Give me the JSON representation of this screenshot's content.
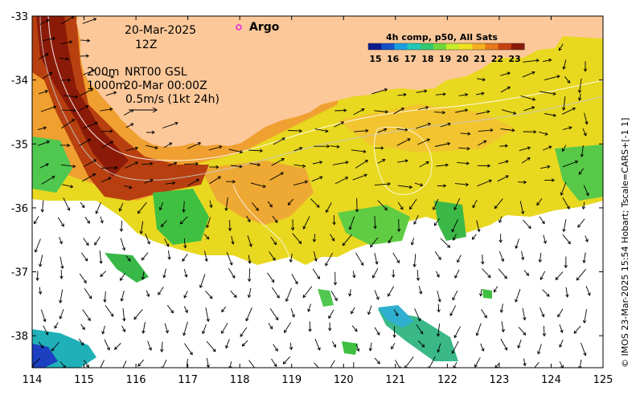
{
  "map": {
    "date_line1": "20-Mar-2025",
    "date_line2": "12Z",
    "argo_label": "Argo",
    "contour_label_200": "200m",
    "contour_label_1000": "1000m",
    "current_source": "NRT00 GSL",
    "current_time": "20-Mar 00:00Z",
    "scale_label": "0.5m/s (1kt 24h)",
    "credit": "© IMOS 23-Mar-2025 15:54 Hobart; Tscale=CARS+[-1 1]"
  },
  "colorbar": {
    "title": "4h comp, p50, All Sats",
    "ticks": [
      "15",
      "16",
      "17",
      "18",
      "19",
      "20",
      "21",
      "22",
      "23"
    ],
    "colors": [
      "#0b1a8c",
      "#1550c8",
      "#1aa0e0",
      "#20c8b8",
      "#30c870",
      "#70d838",
      "#c8ec28",
      "#f0e020",
      "#f4b020",
      "#e87818",
      "#c84010",
      "#8c1a08"
    ]
  },
  "axes": {
    "x_ticks": [
      "114",
      "115",
      "116",
      "117",
      "118",
      "119",
      "120",
      "121",
      "122",
      "123",
      "124",
      "125"
    ],
    "y_ticks": [
      "-33",
      "-34",
      "-35",
      "-36",
      "-37",
      "-38"
    ],
    "xlim": [
      114,
      125
    ],
    "ylim": [
      -38.5,
      -33
    ]
  },
  "colors": {
    "land": "#fcc89a",
    "ocean_warm": "#f0a030",
    "ocean_hot": "#b84010",
    "ocean_mid": "#e8d820",
    "ocean_cool": "#40c840",
    "ocean_cold": "#30b0d0",
    "ocean_coldest": "#1c40c0"
  }
}
